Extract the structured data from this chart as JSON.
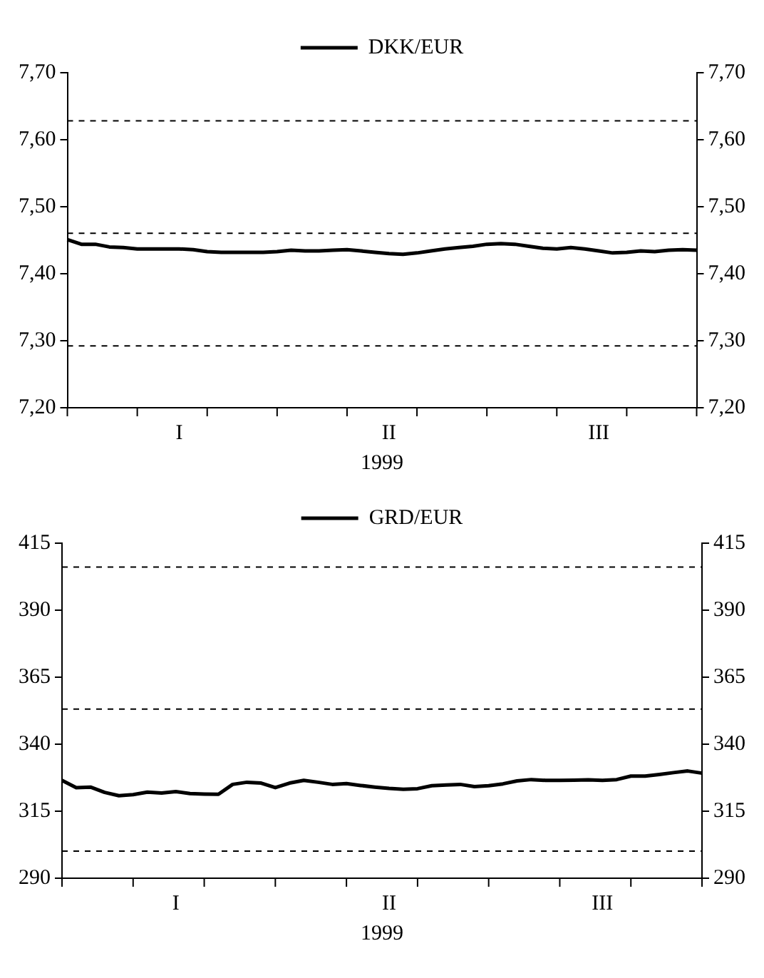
{
  "chart_data": [
    {
      "type": "line",
      "xlabel": "1999",
      "legend": "top",
      "grid": false,
      "marker": "none",
      "line_style": "solid",
      "categories": [
        null,
        null,
        null,
        null,
        null,
        null,
        null,
        null,
        "I",
        null,
        null,
        null,
        null,
        null,
        null,
        null,
        null,
        null,
        null,
        null,
        null,
        null,
        null,
        "II",
        null,
        null,
        null,
        null,
        null,
        null,
        null,
        null,
        null,
        null,
        null,
        null,
        null,
        null,
        "III",
        null,
        null,
        null,
        null,
        null,
        null,
        null
      ],
      "series": [
        {
          "name": "DKK/EUR",
          "color": "#000000",
          "values": [
            7.451,
            7.444,
            7.444,
            7.44,
            7.439,
            7.437,
            7.437,
            7.437,
            7.437,
            7.436,
            7.433,
            7.432,
            7.432,
            7.432,
            7.432,
            7.433,
            7.435,
            7.434,
            7.434,
            7.435,
            7.436,
            7.434,
            7.432,
            7.43,
            7.429,
            7.431,
            7.434,
            7.437,
            7.439,
            7.441,
            7.444,
            7.445,
            7.444,
            7.441,
            7.438,
            7.437,
            7.439,
            7.437,
            7.434,
            7.431,
            7.432,
            7.434,
            7.433,
            7.435,
            7.436,
            7.435
          ]
        }
      ],
      "ylim": [
        7.2,
        7.7
      ],
      "yticks": [
        {
          "value": 7.2,
          "label": "7,20"
        },
        {
          "value": 7.3,
          "label": "7,30"
        },
        {
          "value": 7.4,
          "label": "7,40"
        },
        {
          "value": 7.5,
          "label": "7,50"
        },
        {
          "value": 7.6,
          "label": "7,60"
        },
        {
          "value": 7.7,
          "label": "7,70"
        }
      ],
      "y2lim": [
        7.2,
        7.7
      ],
      "y2ticks": [
        {
          "value": 7.2,
          "label": "7,20"
        },
        {
          "value": 7.3,
          "label": "7,30"
        },
        {
          "value": 7.4,
          "label": "7,40"
        },
        {
          "value": 7.5,
          "label": "7,50"
        },
        {
          "value": 7.6,
          "label": "7,60"
        },
        {
          "value": 7.7,
          "label": "7,70"
        }
      ],
      "ref_lines": [
        {
          "axis": "y",
          "value": 7.6283,
          "line_style": "dashed",
          "color": "#000000"
        },
        {
          "axis": "y",
          "value": 7.4604,
          "line_style": "dashed",
          "color": "#000000"
        },
        {
          "axis": "y",
          "value": 7.2924,
          "line_style": "dashed",
          "color": "#000000"
        }
      ]
    },
    {
      "type": "line",
      "xlabel": "1999",
      "legend": "top",
      "grid": false,
      "marker": "none",
      "line_style": "solid",
      "categories": [
        null,
        null,
        null,
        null,
        null,
        null,
        null,
        null,
        "I",
        null,
        null,
        null,
        null,
        null,
        null,
        null,
        null,
        null,
        null,
        null,
        null,
        null,
        null,
        "II",
        null,
        null,
        null,
        null,
        null,
        null,
        null,
        null,
        null,
        null,
        null,
        null,
        null,
        null,
        "III",
        null,
        null,
        null,
        null,
        null,
        null,
        null
      ],
      "series": [
        {
          "name": "GRD/EUR",
          "color": "#000000",
          "values": [
            326.5,
            323.8,
            324.0,
            322.0,
            320.8,
            321.2,
            322.1,
            321.8,
            322.3,
            321.6,
            321.4,
            321.3,
            325.0,
            325.8,
            325.5,
            323.8,
            325.5,
            326.5,
            325.8,
            325.0,
            325.3,
            324.6,
            324.0,
            323.5,
            323.2,
            323.4,
            324.5,
            324.8,
            325.0,
            324.2,
            324.5,
            325.2,
            326.3,
            326.8,
            326.5,
            326.5,
            326.6,
            326.7,
            326.5,
            326.8,
            328.1,
            328.1,
            328.7,
            329.4,
            330.0,
            329.2
          ]
        }
      ],
      "ylim": [
        290,
        415
      ],
      "yticks": [
        290,
        315,
        340,
        365,
        390,
        415
      ],
      "y2lim": [
        290,
        415
      ],
      "y2ticks": [
        290,
        315,
        340,
        365,
        390,
        415
      ],
      "ref_lines": [
        {
          "axis": "y",
          "value": 406.1,
          "line_style": "dashed",
          "color": "#000000"
        },
        {
          "axis": "y",
          "value": 353.1,
          "line_style": "dashed",
          "color": "#000000"
        },
        {
          "axis": "y",
          "value": 300.1,
          "line_style": "dashed",
          "color": "#000000"
        }
      ]
    }
  ]
}
